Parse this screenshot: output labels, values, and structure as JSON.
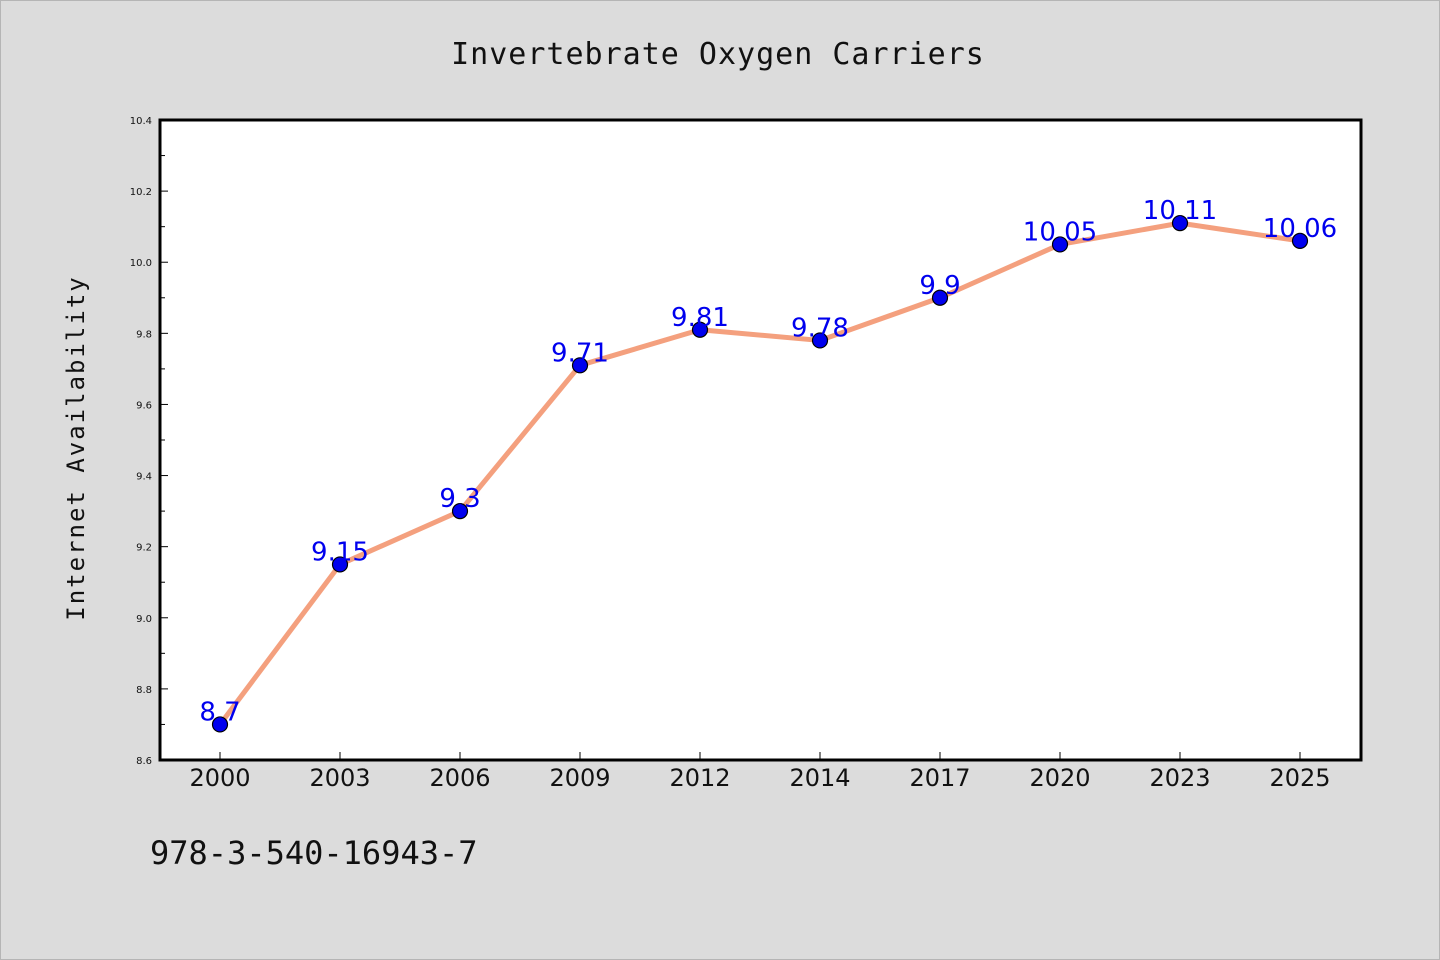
{
  "chart_data": {
    "type": "line",
    "title": "Invertebrate Oxygen Carriers",
    "xlabel": "",
    "ylabel": "Internet Availability",
    "categories": [
      "2000",
      "2003",
      "2006",
      "2009",
      "2012",
      "2014",
      "2017",
      "2020",
      "2023",
      "2025"
    ],
    "series": [
      {
        "values": [
          8.7,
          9.15,
          9.3,
          9.71,
          9.81,
          9.78,
          9.9,
          10.05,
          10.11,
          10.06
        ],
        "data_labels": [
          "8.7",
          "9.15",
          "9.3",
          "9.71",
          "9.81",
          "9.78",
          "9.9",
          "10.05",
          "10.11",
          "10.06"
        ],
        "line_color": "#f4a07e",
        "marker_color": "#0000ee",
        "label_color": "#0000ee"
      }
    ],
    "ylim": [
      8.6,
      10.4
    ],
    "yticks": [
      "8.6",
      "8.8",
      "9.0",
      "9.2",
      "9.4",
      "9.6",
      "9.8",
      "10.0",
      "10.2",
      "10.4"
    ],
    "grid": false,
    "legend": "none"
  },
  "footer": {
    "isbn": "978-3-540-16943-7"
  }
}
